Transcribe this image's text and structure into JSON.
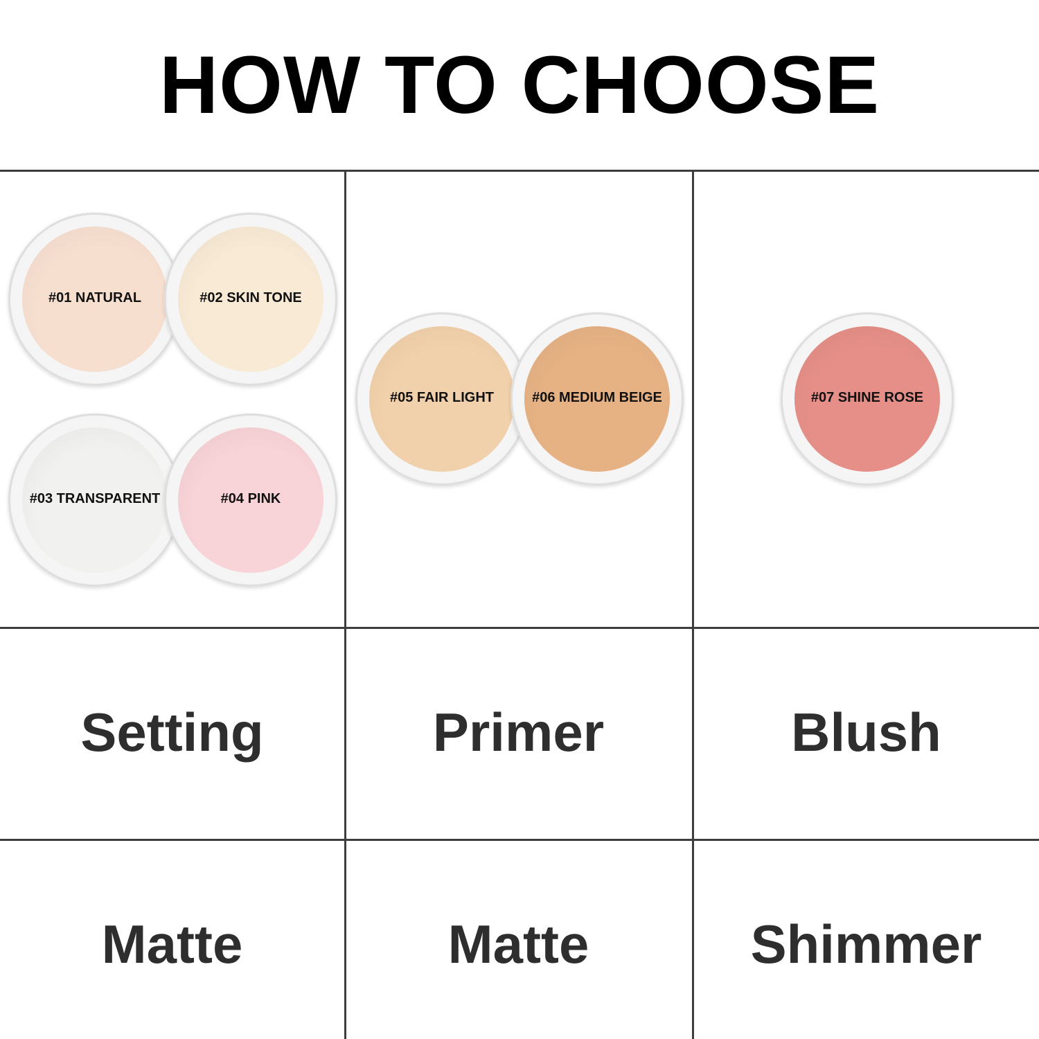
{
  "title": "HOW TO CHOOSE",
  "shades": [
    {
      "label": "#01 NATURAL",
      "color": "#f7dfd0"
    },
    {
      "label": "#02 SKIN TONE",
      "color": "#f8ead5"
    },
    {
      "label": "#03 TRANSPARENT",
      "color": "#f1f1ef"
    },
    {
      "label": "#04 PINK",
      "color": "#f8d3d7"
    },
    {
      "label": "#05 FAIR LIGHT",
      "color": "#f1d1ab"
    },
    {
      "label": "#06 MEDIUM BEIGE",
      "color": "#e6b284"
    },
    {
      "label": "#07 SHINE ROSE",
      "color": "#e58f88"
    }
  ],
  "uses": [
    "Setting",
    "Primer",
    "Blush"
  ],
  "finishes": [
    "Matte",
    "Matte",
    "Shimmer"
  ]
}
